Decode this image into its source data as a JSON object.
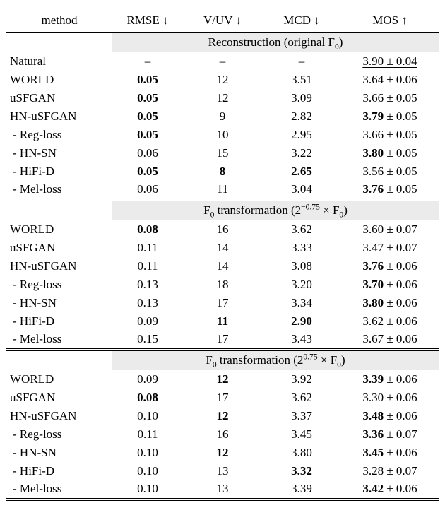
{
  "colors": {
    "band": "#ebebeb",
    "rule": "#000000",
    "background": "#ffffff"
  },
  "table": {
    "columns": [
      "method",
      "RMSE ↓",
      "V/UV ↓",
      "MCD ↓",
      "MOS ↑"
    ],
    "sections": [
      {
        "title": [
          {
            "t": "Reconstruction (original F"
          },
          {
            "t": "0",
            "sub": true
          },
          {
            "t": ")"
          }
        ],
        "rows": [
          {
            "method": "Natural",
            "cells": [
              {
                "v": "–"
              },
              {
                "v": "–"
              },
              {
                "v": "–"
              }
            ],
            "mos": {
              "m": "3.90",
              "e": "0.04",
              "u": true
            }
          },
          {
            "method": "WORLD",
            "cells": [
              {
                "v": "0.05",
                "b": true
              },
              {
                "v": "12"
              },
              {
                "v": "3.51"
              }
            ],
            "mos": {
              "m": "3.64",
              "e": "0.06"
            }
          },
          {
            "method": "uSFGAN",
            "cells": [
              {
                "v": "0.05",
                "b": true
              },
              {
                "v": "12"
              },
              {
                "v": "3.09"
              }
            ],
            "mos": {
              "m": "3.66",
              "e": "0.05"
            }
          },
          {
            "method": "HN-uSFGAN",
            "cells": [
              {
                "v": "0.05",
                "b": true
              },
              {
                "v": "9"
              },
              {
                "v": "2.82"
              }
            ],
            "mos": {
              "m": "3.79",
              "e": "0.05",
              "b": true
            }
          },
          {
            "method": "- Reg-loss",
            "indent": true,
            "cells": [
              {
                "v": "0.05",
                "b": true
              },
              {
                "v": "10"
              },
              {
                "v": "2.95"
              }
            ],
            "mos": {
              "m": "3.66",
              "e": "0.05"
            }
          },
          {
            "method": "- HN-SN",
            "indent": true,
            "cells": [
              {
                "v": "0.06"
              },
              {
                "v": "15"
              },
              {
                "v": "3.22"
              }
            ],
            "mos": {
              "m": "3.80",
              "e": "0.05",
              "b": true
            }
          },
          {
            "method": "- HiFi-D",
            "indent": true,
            "cells": [
              {
                "v": "0.05",
                "b": true
              },
              {
                "v": "8",
                "b": true
              },
              {
                "v": "2.65",
                "b": true
              }
            ],
            "mos": {
              "m": "3.56",
              "e": "0.05"
            }
          },
          {
            "method": "- Mel-loss",
            "indent": true,
            "cells": [
              {
                "v": "0.06"
              },
              {
                "v": "11"
              },
              {
                "v": "3.04"
              }
            ],
            "mos": {
              "m": "3.76",
              "e": "0.05",
              "b": true
            }
          }
        ]
      },
      {
        "title": [
          {
            "t": "F"
          },
          {
            "t": "0",
            "sub": true
          },
          {
            "t": " transformation (2"
          },
          {
            "t": "−0.75",
            "sup": true
          },
          {
            "t": " × F"
          },
          {
            "t": "0",
            "sub": true
          },
          {
            "t": ")"
          }
        ],
        "rows": [
          {
            "method": "WORLD",
            "cells": [
              {
                "v": "0.08",
                "b": true
              },
              {
                "v": "16"
              },
              {
                "v": "3.62"
              }
            ],
            "mos": {
              "m": "3.60",
              "e": "0.07"
            }
          },
          {
            "method": "uSFGAN",
            "cells": [
              {
                "v": "0.11"
              },
              {
                "v": "14"
              },
              {
                "v": "3.33"
              }
            ],
            "mos": {
              "m": "3.47",
              "e": "0.07"
            }
          },
          {
            "method": "HN-uSFGAN",
            "cells": [
              {
                "v": "0.11"
              },
              {
                "v": "14"
              },
              {
                "v": "3.08"
              }
            ],
            "mos": {
              "m": "3.76",
              "e": "0.06",
              "b": true
            }
          },
          {
            "method": "- Reg-loss",
            "indent": true,
            "cells": [
              {
                "v": "0.13"
              },
              {
                "v": "18"
              },
              {
                "v": "3.20"
              }
            ],
            "mos": {
              "m": "3.70",
              "e": "0.06",
              "b": true
            }
          },
          {
            "method": "- HN-SN",
            "indent": true,
            "cells": [
              {
                "v": "0.13"
              },
              {
                "v": "17"
              },
              {
                "v": "3.34"
              }
            ],
            "mos": {
              "m": "3.80",
              "e": "0.06",
              "b": true
            }
          },
          {
            "method": "- HiFi-D",
            "indent": true,
            "cells": [
              {
                "v": "0.09"
              },
              {
                "v": "11",
                "b": true
              },
              {
                "v": "2.90",
                "b": true
              }
            ],
            "mos": {
              "m": "3.62",
              "e": "0.06"
            }
          },
          {
            "method": "- Mel-loss",
            "indent": true,
            "cells": [
              {
                "v": "0.15"
              },
              {
                "v": "17"
              },
              {
                "v": "3.43"
              }
            ],
            "mos": {
              "m": "3.67",
              "e": "0.06"
            }
          }
        ]
      },
      {
        "title": [
          {
            "t": "F"
          },
          {
            "t": "0",
            "sub": true
          },
          {
            "t": " transformation (2"
          },
          {
            "t": "0.75",
            "sup": true
          },
          {
            "t": " × F"
          },
          {
            "t": "0",
            "sub": true
          },
          {
            "t": ")"
          }
        ],
        "rows": [
          {
            "method": "WORLD",
            "cells": [
              {
                "v": "0.09"
              },
              {
                "v": "12",
                "b": true
              },
              {
                "v": "3.92"
              }
            ],
            "mos": {
              "m": "3.39",
              "e": "0.06",
              "b": true
            }
          },
          {
            "method": "uSFGAN",
            "cells": [
              {
                "v": "0.08",
                "b": true
              },
              {
                "v": "17"
              },
              {
                "v": "3.62"
              }
            ],
            "mos": {
              "m": "3.30",
              "e": "0.06"
            }
          },
          {
            "method": "HN-uSFGAN",
            "cells": [
              {
                "v": "0.10"
              },
              {
                "v": "12",
                "b": true
              },
              {
                "v": "3.37"
              }
            ],
            "mos": {
              "m": "3.48",
              "e": "0.06",
              "b": true
            }
          },
          {
            "method": "- Reg-loss",
            "indent": true,
            "cells": [
              {
                "v": "0.11"
              },
              {
                "v": "16"
              },
              {
                "v": "3.45"
              }
            ],
            "mos": {
              "m": "3.36",
              "e": "0.07",
              "b": true
            }
          },
          {
            "method": "- HN-SN",
            "indent": true,
            "cells": [
              {
                "v": "0.10"
              },
              {
                "v": "12",
                "b": true
              },
              {
                "v": "3.80"
              }
            ],
            "mos": {
              "m": "3.45",
              "e": "0.06",
              "b": true
            }
          },
          {
            "method": "- HiFi-D",
            "indent": true,
            "cells": [
              {
                "v": "0.10"
              },
              {
                "v": "13"
              },
              {
                "v": "3.32",
                "b": true
              }
            ],
            "mos": {
              "m": "3.28",
              "e": "0.07"
            }
          },
          {
            "method": "- Mel-loss",
            "indent": true,
            "cells": [
              {
                "v": "0.10"
              },
              {
                "v": "13"
              },
              {
                "v": "3.39"
              }
            ],
            "mos": {
              "m": "3.42",
              "e": "0.06",
              "b": true
            }
          }
        ]
      }
    ]
  }
}
